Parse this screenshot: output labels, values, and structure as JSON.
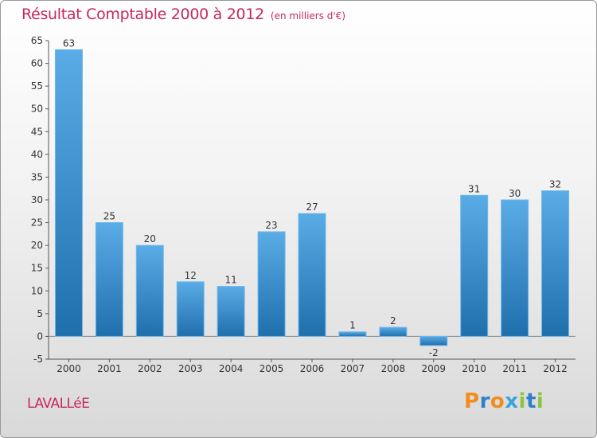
{
  "title": "Résultat Comptable 2000 à 2012",
  "subtitle": "(en milliers d'€)",
  "commune": "LAVALLéE",
  "logo_text": "Proxiti",
  "colors": {
    "title": "#c8285a",
    "bar_light": "#5aace6",
    "bar_dark": "#1f6fad",
    "axis": "#555555"
  },
  "chart_data": {
    "type": "bar",
    "title": "Résultat Comptable 2000 à 2012",
    "subtitle": "(en milliers d'€)",
    "xlabel": "",
    "ylabel": "",
    "categories": [
      "2000",
      "2001",
      "2002",
      "2003",
      "2004",
      "2005",
      "2006",
      "2007",
      "2008",
      "2009",
      "2010",
      "2011",
      "2012"
    ],
    "values": [
      63,
      25,
      20,
      12,
      11,
      23,
      27,
      1,
      2,
      -2,
      31,
      30,
      32
    ],
    "ylim": [
      -5,
      65
    ],
    "yticks": [
      -5,
      0,
      5,
      10,
      15,
      20,
      25,
      30,
      35,
      40,
      45,
      50,
      55,
      60,
      65
    ],
    "grid": false,
    "legend": "none"
  }
}
